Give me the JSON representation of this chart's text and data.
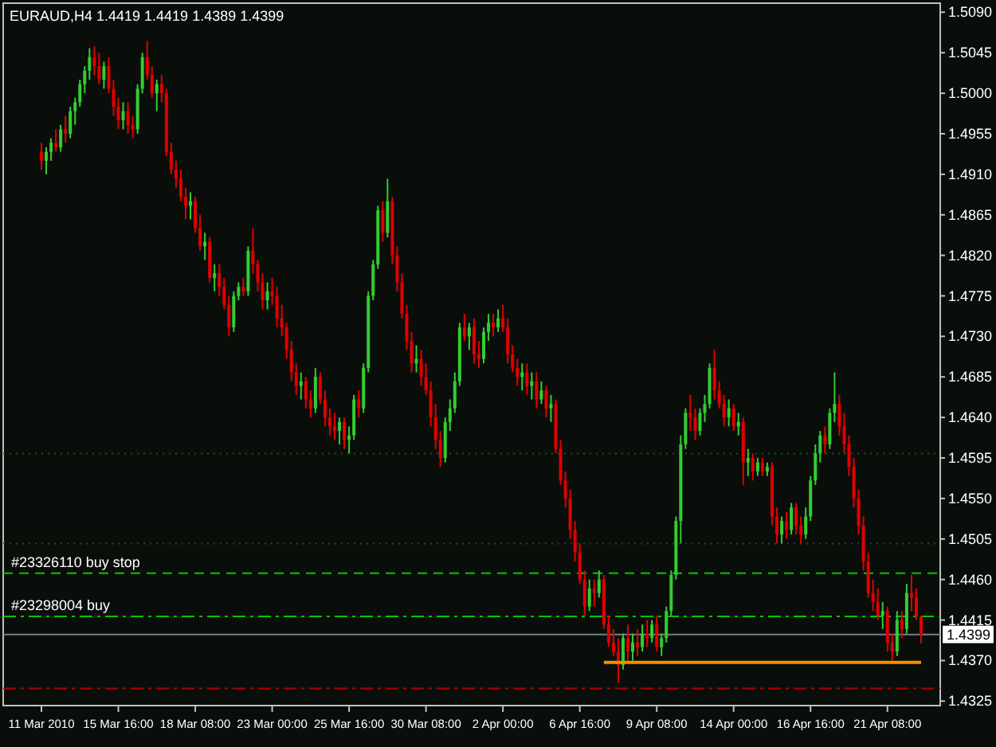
{
  "chart_data": {
    "type": "candlestick",
    "title": "EURAUD,H4  1.4419 1.4419 1.4389 1.4399",
    "categories": [
      "11 Mar 2010",
      null,
      null,
      null,
      null,
      null,
      null,
      null,
      null,
      null,
      null,
      null,
      null,
      null,
      null,
      null,
      "15 Mar 16:00",
      null,
      null,
      null,
      null,
      null,
      null,
      null,
      null,
      null,
      null,
      null,
      null,
      null,
      null,
      null,
      "18 Mar 08:00",
      null,
      null,
      null,
      null,
      null,
      null,
      null,
      null,
      null,
      null,
      null,
      null,
      null,
      null,
      null,
      "23 Mar 00:00",
      null,
      null,
      null,
      null,
      null,
      null,
      null,
      null,
      null,
      null,
      null,
      null,
      null,
      null,
      null,
      "25 Mar 16:00",
      null,
      null,
      null,
      null,
      null,
      null,
      null,
      null,
      null,
      null,
      null,
      null,
      null,
      null,
      null,
      "30 Mar 08:00",
      null,
      null,
      null,
      null,
      null,
      null,
      null,
      null,
      null,
      null,
      null,
      null,
      null,
      null,
      null,
      "2 Apr 00:00",
      null,
      null,
      null,
      null,
      null,
      null,
      null,
      null,
      null,
      null,
      null,
      null,
      null,
      null,
      null,
      "6 Apr 16:00",
      null,
      null,
      null,
      null,
      null,
      null,
      null,
      null,
      null,
      null,
      null,
      null,
      null,
      null,
      null,
      "9 Apr 08:00",
      null,
      null,
      null,
      null,
      null,
      null,
      null,
      null,
      null,
      null,
      null,
      null,
      null,
      null,
      null,
      "14 Apr 00:00",
      null,
      null,
      null,
      null,
      null,
      null,
      null,
      null,
      null,
      null,
      null,
      null,
      null,
      null,
      null,
      "16 Apr 16:00",
      null,
      null,
      null,
      null,
      null,
      null,
      null,
      null,
      null,
      null,
      null,
      null,
      null,
      null,
      null,
      "21 Apr 08:00",
      null,
      null,
      null,
      null,
      null,
      null,
      null
    ],
    "ohlc": [
      [
        1.4935,
        1.4945,
        1.4915,
        1.4925
      ],
      [
        1.4925,
        1.494,
        1.491,
        1.4935
      ],
      [
        1.4935,
        1.495,
        1.4925,
        1.4945
      ],
      [
        1.4945,
        1.496,
        1.4935,
        1.494
      ],
      [
        1.494,
        1.4965,
        1.4935,
        1.496
      ],
      [
        1.496,
        1.4975,
        1.4945,
        1.4955
      ],
      [
        1.4955,
        1.4985,
        1.495,
        1.498
      ],
      [
        1.498,
        1.4995,
        1.4965,
        1.499
      ],
      [
        1.499,
        1.5015,
        1.4985,
        1.501
      ],
      [
        1.501,
        1.503,
        1.5,
        1.5025
      ],
      [
        1.5025,
        1.505,
        1.5015,
        1.504
      ],
      [
        1.504,
        1.5052,
        1.502,
        1.503
      ],
      [
        1.503,
        1.5045,
        1.501,
        1.5015
      ],
      [
        1.5015,
        1.5035,
        1.5005,
        1.503
      ],
      [
        1.503,
        1.504,
        1.5,
        1.5005
      ],
      [
        1.5005,
        1.5015,
        1.4975,
        1.4985
      ],
      [
        1.4985,
        1.4995,
        1.496,
        1.497
      ],
      [
        1.497,
        1.499,
        1.496,
        1.498
      ],
      [
        1.498,
        1.499,
        1.4955,
        1.4965
      ],
      [
        1.4965,
        1.4975,
        1.495,
        1.496
      ],
      [
        1.496,
        1.501,
        1.4955,
        1.5005
      ],
      [
        1.5005,
        1.5045,
        1.5,
        1.504
      ],
      [
        1.504,
        1.5058,
        1.5015,
        1.502
      ],
      [
        1.502,
        1.503,
        1.4995,
        1.5
      ],
      [
        1.5,
        1.5015,
        1.498,
        1.501
      ],
      [
        1.501,
        1.502,
        1.499,
        1.5
      ],
      [
        1.5,
        1.5005,
        1.493,
        1.4935
      ],
      [
        1.4935,
        1.4945,
        1.491,
        1.4915
      ],
      [
        1.4915,
        1.4925,
        1.4895,
        1.4905
      ],
      [
        1.4905,
        1.4915,
        1.488,
        1.4885
      ],
      [
        1.4885,
        1.4895,
        1.486,
        1.4875
      ],
      [
        1.4875,
        1.489,
        1.486,
        1.488
      ],
      [
        1.488,
        1.4885,
        1.4845,
        1.485
      ],
      [
        1.485,
        1.4865,
        1.4825,
        1.483
      ],
      [
        1.483,
        1.4845,
        1.4815,
        1.4835
      ],
      [
        1.4835,
        1.484,
        1.479,
        1.4795
      ],
      [
        1.4795,
        1.481,
        1.478,
        1.48
      ],
      [
        1.48,
        1.481,
        1.4775,
        1.4785
      ],
      [
        1.4785,
        1.4795,
        1.476,
        1.4765
      ],
      [
        1.4765,
        1.4775,
        1.473,
        1.474
      ],
      [
        1.474,
        1.478,
        1.4735,
        1.4775
      ],
      [
        1.4775,
        1.479,
        1.477,
        1.4785
      ],
      [
        1.4785,
        1.4795,
        1.4775,
        1.478
      ],
      [
        1.478,
        1.483,
        1.4775,
        1.4825
      ],
      [
        1.4825,
        1.485,
        1.48,
        1.481
      ],
      [
        1.481,
        1.4815,
        1.478,
        1.479
      ],
      [
        1.479,
        1.48,
        1.476,
        1.477
      ],
      [
        1.477,
        1.479,
        1.476,
        1.478
      ],
      [
        1.478,
        1.4795,
        1.4765,
        1.4775
      ],
      [
        1.4775,
        1.4785,
        1.474,
        1.475
      ],
      [
        1.475,
        1.4765,
        1.473,
        1.474
      ],
      [
        1.474,
        1.4745,
        1.4705,
        1.4715
      ],
      [
        1.4715,
        1.4725,
        1.468,
        1.469
      ],
      [
        1.469,
        1.47,
        1.4665,
        1.4675
      ],
      [
        1.4675,
        1.469,
        1.466,
        1.468
      ],
      [
        1.468,
        1.4685,
        1.465,
        1.466
      ],
      [
        1.466,
        1.467,
        1.464,
        1.465
      ],
      [
        1.465,
        1.4695,
        1.4645,
        1.4685
      ],
      [
        1.4685,
        1.469,
        1.4655,
        1.466
      ],
      [
        1.466,
        1.467,
        1.463,
        1.464
      ],
      [
        1.464,
        1.465,
        1.462,
        1.463
      ],
      [
        1.463,
        1.4645,
        1.4615,
        1.4625
      ],
      [
        1.4625,
        1.464,
        1.461,
        1.4635
      ],
      [
        1.4635,
        1.464,
        1.4605,
        1.4615
      ],
      [
        1.4615,
        1.463,
        1.46,
        1.462
      ],
      [
        1.462,
        1.4665,
        1.4615,
        1.466
      ],
      [
        1.466,
        1.467,
        1.464,
        1.465
      ],
      [
        1.465,
        1.47,
        1.4645,
        1.4695
      ],
      [
        1.4695,
        1.478,
        1.469,
        1.4775
      ],
      [
        1.4775,
        1.4815,
        1.477,
        1.481
      ],
      [
        1.481,
        1.4875,
        1.4805,
        1.487
      ],
      [
        1.487,
        1.488,
        1.4835,
        1.4845
      ],
      [
        1.4845,
        1.4905,
        1.484,
        1.488
      ],
      [
        1.488,
        1.4885,
        1.481,
        1.482
      ],
      [
        1.482,
        1.483,
        1.478,
        1.479
      ],
      [
        1.479,
        1.48,
        1.475,
        1.4755
      ],
      [
        1.4755,
        1.4765,
        1.4715,
        1.4725
      ],
      [
        1.4725,
        1.4735,
        1.469,
        1.47
      ],
      [
        1.47,
        1.472,
        1.469,
        1.4705
      ],
      [
        1.4705,
        1.4715,
        1.4675,
        1.4685
      ],
      [
        1.4685,
        1.47,
        1.4665,
        1.467
      ],
      [
        1.467,
        1.468,
        1.463,
        1.464
      ],
      [
        1.464,
        1.4655,
        1.4605,
        1.4615
      ],
      [
        1.4615,
        1.4625,
        1.4585,
        1.4595
      ],
      [
        1.4595,
        1.464,
        1.459,
        1.4635
      ],
      [
        1.4635,
        1.466,
        1.4625,
        1.465
      ],
      [
        1.465,
        1.469,
        1.4645,
        1.468
      ],
      [
        1.468,
        1.4745,
        1.4675,
        1.474
      ],
      [
        1.474,
        1.4755,
        1.4725,
        1.473
      ],
      [
        1.473,
        1.4745,
        1.4715,
        1.474
      ],
      [
        1.474,
        1.475,
        1.47,
        1.471
      ],
      [
        1.471,
        1.4725,
        1.4695,
        1.4705
      ],
      [
        1.4705,
        1.474,
        1.47,
        1.4735
      ],
      [
        1.4735,
        1.4755,
        1.4725,
        1.4745
      ],
      [
        1.4745,
        1.4755,
        1.473,
        1.474
      ],
      [
        1.474,
        1.476,
        1.4735,
        1.475
      ],
      [
        1.475,
        1.4765,
        1.4735,
        1.474
      ],
      [
        1.474,
        1.475,
        1.47,
        1.471
      ],
      [
        1.471,
        1.472,
        1.469,
        1.4695
      ],
      [
        1.4695,
        1.4705,
        1.4675,
        1.4685
      ],
      [
        1.4685,
        1.47,
        1.467,
        1.469
      ],
      [
        1.469,
        1.47,
        1.4665,
        1.4675
      ],
      [
        1.4675,
        1.469,
        1.466,
        1.468
      ],
      [
        1.468,
        1.469,
        1.465,
        1.466
      ],
      [
        1.466,
        1.468,
        1.4655,
        1.467
      ],
      [
        1.467,
        1.4675,
        1.464,
        1.465
      ],
      [
        1.465,
        1.4665,
        1.4635,
        1.4655
      ],
      [
        1.4655,
        1.466,
        1.46,
        1.4605
      ],
      [
        1.4605,
        1.4615,
        1.4565,
        1.457
      ],
      [
        1.457,
        1.458,
        1.454,
        1.455
      ],
      [
        1.455,
        1.456,
        1.4505,
        1.4515
      ],
      [
        1.4515,
        1.4525,
        1.448,
        1.449
      ],
      [
        1.449,
        1.45,
        1.4455,
        1.446
      ],
      [
        1.446,
        1.447,
        1.442,
        1.443
      ],
      [
        1.443,
        1.446,
        1.4425,
        1.445
      ],
      [
        1.445,
        1.446,
        1.443,
        1.4445
      ],
      [
        1.4445,
        1.447,
        1.444,
        1.446
      ],
      [
        1.446,
        1.4465,
        1.4405,
        1.441
      ],
      [
        1.441,
        1.442,
        1.4385,
        1.439
      ],
      [
        1.439,
        1.4405,
        1.4375,
        1.438
      ],
      [
        1.438,
        1.4395,
        1.4345,
        1.4365
      ],
      [
        1.4365,
        1.44,
        1.436,
        1.4395
      ],
      [
        1.4395,
        1.441,
        1.437,
        1.438
      ],
      [
        1.438,
        1.44,
        1.437,
        1.439
      ],
      [
        1.439,
        1.4405,
        1.4375,
        1.4385
      ],
      [
        1.4385,
        1.441,
        1.438,
        1.44
      ],
      [
        1.44,
        1.4415,
        1.4385,
        1.4395
      ],
      [
        1.4395,
        1.4415,
        1.439,
        1.441
      ],
      [
        1.441,
        1.442,
        1.438,
        1.4385
      ],
      [
        1.4385,
        1.44,
        1.4375,
        1.4395
      ],
      [
        1.4395,
        1.443,
        1.439,
        1.4425
      ],
      [
        1.4425,
        1.447,
        1.442,
        1.4465
      ],
      [
        1.4465,
        1.453,
        1.446,
        1.4525
      ],
      [
        1.4525,
        1.462,
        1.45,
        1.461
      ],
      [
        1.461,
        1.465,
        1.4605,
        1.4645
      ],
      [
        1.4645,
        1.4665,
        1.4625,
        1.464
      ],
      [
        1.464,
        1.465,
        1.4615,
        1.4625
      ],
      [
        1.4625,
        1.465,
        1.462,
        1.4645
      ],
      [
        1.4645,
        1.4665,
        1.4635,
        1.4655
      ],
      [
        1.4655,
        1.47,
        1.465,
        1.4695
      ],
      [
        1.4695,
        1.4715,
        1.466,
        1.467
      ],
      [
        1.467,
        1.468,
        1.465,
        1.4655
      ],
      [
        1.4655,
        1.4665,
        1.463,
        1.464
      ],
      [
        1.464,
        1.466,
        1.463,
        1.465
      ],
      [
        1.465,
        1.4655,
        1.4625,
        1.463
      ],
      [
        1.463,
        1.4645,
        1.462,
        1.4635
      ],
      [
        1.4635,
        1.464,
        1.4565,
        1.459
      ],
      [
        1.459,
        1.4605,
        1.4575,
        1.4595
      ],
      [
        1.4595,
        1.46,
        1.457,
        1.458
      ],
      [
        1.458,
        1.4595,
        1.4575,
        1.459
      ],
      [
        1.459,
        1.4595,
        1.4575,
        1.458
      ],
      [
        1.458,
        1.459,
        1.4575,
        1.4585
      ],
      [
        1.4585,
        1.459,
        1.452,
        1.453
      ],
      [
        1.453,
        1.454,
        1.45,
        1.451
      ],
      [
        1.451,
        1.453,
        1.45,
        1.4525
      ],
      [
        1.4525,
        1.4535,
        1.4505,
        1.4515
      ],
      [
        1.4515,
        1.4545,
        1.451,
        1.454
      ],
      [
        1.454,
        1.4545,
        1.451,
        1.452
      ],
      [
        1.452,
        1.453,
        1.45,
        1.451
      ],
      [
        1.451,
        1.454,
        1.4505,
        1.453
      ],
      [
        1.453,
        1.4575,
        1.4525,
        1.457
      ],
      [
        1.457,
        1.461,
        1.4565,
        1.46
      ],
      [
        1.46,
        1.4625,
        1.459,
        1.462
      ],
      [
        1.462,
        1.463,
        1.46,
        1.461
      ],
      [
        1.461,
        1.465,
        1.4605,
        1.4645
      ],
      [
        1.4645,
        1.469,
        1.4635,
        1.4655
      ],
      [
        1.4655,
        1.4665,
        1.462,
        1.463
      ],
      [
        1.463,
        1.4645,
        1.46,
        1.461
      ],
      [
        1.461,
        1.462,
        1.4575,
        1.4585
      ],
      [
        1.4585,
        1.4595,
        1.454,
        1.455
      ],
      [
        1.455,
        1.456,
        1.451,
        1.452
      ],
      [
        1.452,
        1.453,
        1.447,
        1.448
      ],
      [
        1.448,
        1.449,
        1.444,
        1.4445
      ],
      [
        1.4445,
        1.446,
        1.4425,
        1.4435
      ],
      [
        1.4435,
        1.445,
        1.4415,
        1.442
      ],
      [
        1.442,
        1.4435,
        1.4405,
        1.4425
      ],
      [
        1.4425,
        1.443,
        1.438,
        1.439
      ],
      [
        1.439,
        1.44,
        1.437,
        1.438
      ],
      [
        1.438,
        1.4425,
        1.4375,
        1.4415
      ],
      [
        1.4415,
        1.4425,
        1.4395,
        1.4405
      ],
      [
        1.4405,
        1.4455,
        1.44,
        1.4445
      ],
      [
        1.4445,
        1.4465,
        1.4425,
        1.444
      ],
      [
        1.444,
        1.445,
        1.4415,
        1.4419
      ],
      [
        1.4419,
        1.4419,
        1.4389,
        1.4399
      ]
    ],
    "series": [
      {
        "type": "line",
        "color": "#ff8c00",
        "values": [
          null,
          null,
          null,
          null,
          null,
          null,
          null,
          null,
          null,
          null,
          null,
          null,
          null,
          null,
          null,
          null,
          null,
          null,
          null,
          null,
          null,
          null,
          null,
          null,
          null,
          null,
          null,
          null,
          null,
          null,
          null,
          null,
          null,
          null,
          null,
          null,
          null,
          null,
          null,
          null,
          null,
          null,
          null,
          null,
          null,
          null,
          null,
          null,
          null,
          null,
          null,
          null,
          null,
          null,
          null,
          null,
          null,
          null,
          null,
          null,
          null,
          null,
          null,
          null,
          null,
          null,
          null,
          null,
          null,
          null,
          null,
          null,
          null,
          null,
          null,
          null,
          null,
          null,
          null,
          null,
          null,
          null,
          null,
          null,
          null,
          null,
          null,
          null,
          null,
          null,
          null,
          null,
          null,
          null,
          null,
          null,
          null,
          null,
          null,
          null,
          null,
          null,
          null,
          null,
          null,
          null,
          null,
          null,
          null,
          null,
          null,
          null,
          null,
          null,
          null,
          null,
          null,
          1.4368,
          1.4368,
          1.4368,
          1.4368,
          1.4368,
          1.4368,
          1.4368,
          1.4368,
          1.4368,
          1.4368,
          1.4368,
          1.4368,
          1.4368,
          1.4368,
          1.4368,
          1.4368,
          1.4368,
          1.4368,
          1.4368,
          1.4368,
          1.4368,
          1.4368,
          1.4368,
          1.4368,
          1.4368,
          1.4368,
          1.4368,
          1.4368,
          1.4368,
          1.4368,
          1.4368,
          1.4368,
          1.4368,
          1.4368,
          1.4368,
          1.4368,
          1.4368,
          1.4368,
          1.4368,
          1.4368,
          1.4368,
          1.4368,
          1.4368,
          1.4368,
          1.4368,
          1.4368,
          1.4368,
          1.4368,
          1.4368,
          1.4368,
          1.4368,
          1.4368,
          1.4368,
          1.4368,
          1.4368,
          1.4368,
          1.4368,
          1.4368,
          1.4368,
          1.4368,
          1.4368,
          1.4368,
          1.4368,
          1.4368,
          1.4368,
          1.4368,
          1.4368
        ]
      }
    ],
    "ylim": [
      1.432,
      1.51
    ],
    "yticks": [
      {
        "value": 1.509,
        "label": "1.5090"
      },
      {
        "value": 1.5045,
        "label": "1.5045"
      },
      {
        "value": 1.5,
        "label": "1.5000"
      },
      {
        "value": 1.4955,
        "label": "1.4955"
      },
      {
        "value": 1.491,
        "label": "1.4910"
      },
      {
        "value": 1.4865,
        "label": "1.4865"
      },
      {
        "value": 1.482,
        "label": "1.4820"
      },
      {
        "value": 1.4775,
        "label": "1.4775"
      },
      {
        "value": 1.473,
        "label": "1.4730"
      },
      {
        "value": 1.4685,
        "label": "1.4685"
      },
      {
        "value": 1.464,
        "label": "1.4640"
      },
      {
        "value": 1.4595,
        "label": "1.4595"
      },
      {
        "value": 1.455,
        "label": "1.4550"
      },
      {
        "value": 1.4505,
        "label": "1.4505"
      },
      {
        "value": 1.446,
        "label": "1.4460"
      },
      {
        "value": 1.4415,
        "label": "1.4415"
      },
      {
        "value": 1.437,
        "label": "1.4370"
      },
      {
        "value": 1.4325,
        "label": "1.4325"
      }
    ],
    "ref_lines": [
      {
        "axis": "y",
        "value": 1.46,
        "color": "#0a5a0a",
        "line_style": "dotted"
      },
      {
        "axis": "y",
        "value": 1.45,
        "color": "#0a5a0a",
        "line_style": "dotted"
      },
      {
        "axis": "y",
        "value": 1.4467,
        "label": "#23326110 buy stop",
        "color": "#00c800",
        "line_style": "dashed"
      },
      {
        "axis": "y",
        "value": 1.4419,
        "label": "#23298004 buy",
        "color": "#00c800",
        "line_style": "dashdot"
      },
      {
        "axis": "y",
        "value": 1.4399,
        "label": "1.4399",
        "color": "#708090",
        "line_style": "solid"
      },
      {
        "axis": "y",
        "value": 1.4339,
        "color": "#b00000",
        "line_style": "dashdot"
      }
    ]
  }
}
